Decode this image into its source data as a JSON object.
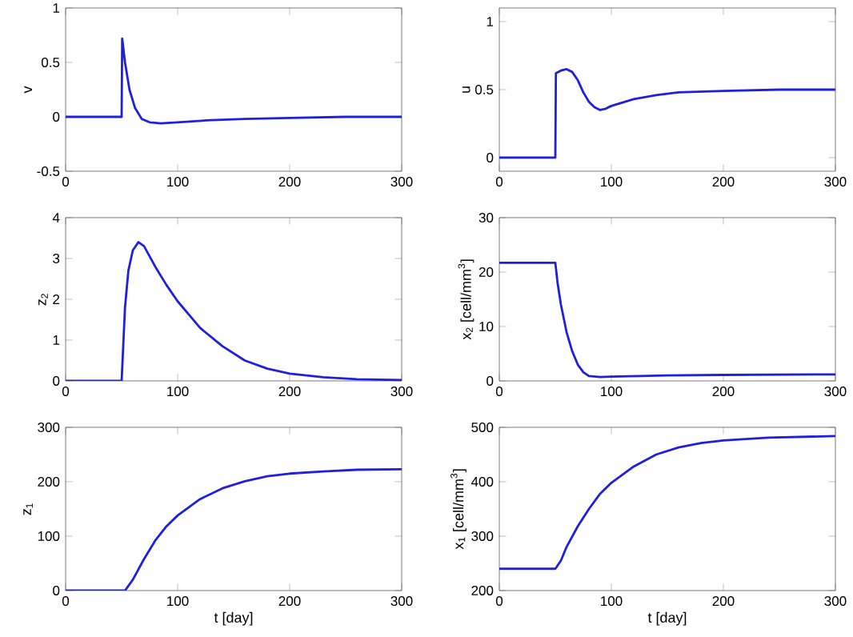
{
  "chart_data": [
    {
      "type": "line",
      "ylabel": "v",
      "xlim": [
        0,
        300
      ],
      "ylim": [
        -0.5,
        1
      ],
      "xticks": [
        0,
        100,
        200,
        300
      ],
      "yticks": [
        -0.5,
        0,
        0.5,
        1
      ],
      "color": "#1f1fe0",
      "x": [
        0,
        49,
        50,
        50.5,
        53,
        57,
        62,
        68,
        75,
        85,
        100,
        130,
        160,
        200,
        250,
        300
      ],
      "values": [
        0,
        0,
        0,
        0.72,
        0.5,
        0.25,
        0.08,
        -0.02,
        -0.05,
        -0.06,
        -0.05,
        -0.03,
        -0.02,
        -0.01,
        0,
        0
      ]
    },
    {
      "type": "line",
      "ylabel": "u",
      "xlim": [
        0,
        300
      ],
      "ylim": [
        -0.1,
        1.1
      ],
      "xticks": [
        0,
        100,
        200,
        300
      ],
      "yticks": [
        0,
        0.5,
        1
      ],
      "color": "#1f1fe0",
      "x": [
        0,
        50,
        50.5,
        55,
        60,
        65,
        70,
        75,
        80,
        85,
        90,
        95,
        100,
        120,
        140,
        160,
        200,
        250,
        300
      ],
      "values": [
        0,
        0,
        0.62,
        0.64,
        0.65,
        0.63,
        0.57,
        0.48,
        0.41,
        0.37,
        0.35,
        0.36,
        0.38,
        0.43,
        0.46,
        0.48,
        0.49,
        0.5,
        0.5
      ]
    },
    {
      "type": "line",
      "ylabel": "z$_{2}$",
      "xlim": [
        0,
        300
      ],
      "ylim": [
        0,
        4
      ],
      "xticks": [
        0,
        100,
        200,
        300
      ],
      "yticks": [
        0,
        1,
        2,
        3,
        4
      ],
      "color": "#1f1fe0",
      "x": [
        0,
        50,
        51,
        53,
        56,
        60,
        65,
        70,
        80,
        90,
        100,
        120,
        140,
        160,
        180,
        200,
        230,
        260,
        300
      ],
      "values": [
        0,
        0,
        0.6,
        1.8,
        2.7,
        3.2,
        3.4,
        3.3,
        2.8,
        2.35,
        1.95,
        1.3,
        0.85,
        0.5,
        0.3,
        0.18,
        0.09,
        0.04,
        0.02
      ]
    },
    {
      "type": "line",
      "ylabel": "x$_{2}$ [cell/mm$^{3}$]",
      "xlim": [
        0,
        300
      ],
      "ylim": [
        0,
        30
      ],
      "xticks": [
        0,
        100,
        200,
        300
      ],
      "yticks": [
        0,
        10,
        20,
        30
      ],
      "color": "#1f1fe0",
      "x": [
        0,
        50,
        52,
        55,
        60,
        65,
        70,
        75,
        80,
        90,
        100,
        150,
        200,
        300
      ],
      "values": [
        21.7,
        21.7,
        18,
        14,
        9,
        5.5,
        3,
        1.6,
        0.9,
        0.7,
        0.8,
        1.0,
        1.1,
        1.2
      ]
    },
    {
      "type": "line",
      "ylabel": "z$_{1}$",
      "xlabel": "t [day]",
      "xlim": [
        0,
        300
      ],
      "ylim": [
        0,
        300
      ],
      "xticks": [
        0,
        100,
        200,
        300
      ],
      "yticks": [
        0,
        100,
        200,
        300
      ],
      "color": "#1f1fe0",
      "x": [
        0,
        53,
        60,
        70,
        80,
        90,
        100,
        120,
        140,
        160,
        180,
        200,
        230,
        260,
        300
      ],
      "values": [
        0,
        0,
        20,
        58,
        92,
        118,
        138,
        168,
        188,
        201,
        210,
        215,
        219,
        222,
        223
      ]
    },
    {
      "type": "line",
      "ylabel": "x$_{1}$ [cell/mm$^{3}$]",
      "xlabel": "t [day]",
      "xlim": [
        0,
        300
      ],
      "ylim": [
        200,
        500
      ],
      "xticks": [
        0,
        100,
        200,
        300
      ],
      "yticks": [
        200,
        300,
        400,
        500
      ],
      "color": "#1f1fe0",
      "x": [
        0,
        50,
        55,
        60,
        70,
        80,
        90,
        100,
        120,
        140,
        160,
        180,
        200,
        240,
        300
      ],
      "values": [
        240,
        240,
        255,
        280,
        318,
        350,
        378,
        398,
        428,
        450,
        463,
        471,
        476,
        481,
        484
      ]
    }
  ]
}
